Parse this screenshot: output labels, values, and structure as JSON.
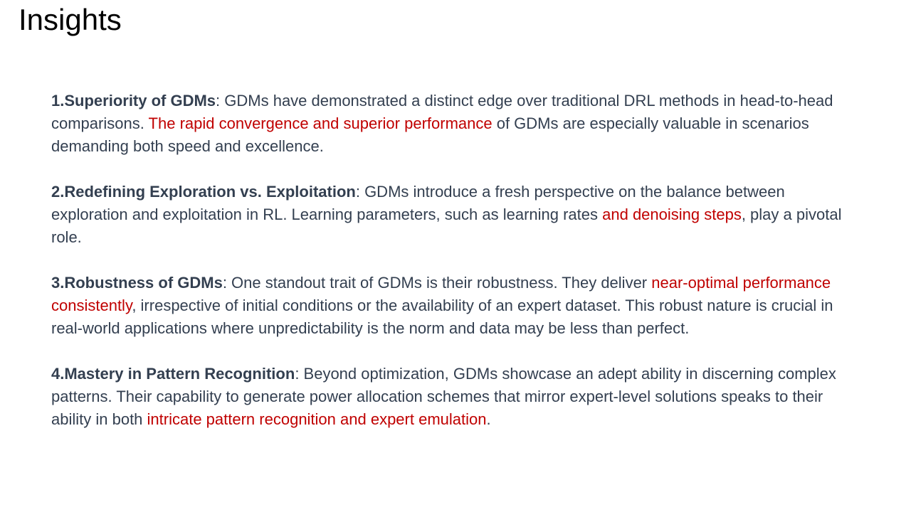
{
  "slide": {
    "title": "Insights"
  },
  "insights": [
    {
      "number": "1.",
      "heading": "Superiority of GDMs",
      "segments": [
        {
          "text": ": GDMs have demonstrated a distinct edge over traditional DRL methods in head-to-head comparisons. ",
          "highlight": false
        },
        {
          "text": "The rapid convergence and superior performance",
          "highlight": true
        },
        {
          "text": " of GDMs are especially valuable in scenarios demanding both speed and excellence.",
          "highlight": false
        }
      ]
    },
    {
      "number": "2.",
      "heading": "Redefining Exploration vs. Exploitation",
      "segments": [
        {
          "text": ": GDMs introduce a fresh perspective on the balance between exploration and exploitation in RL. Learning parameters, such as learning rates ",
          "highlight": false
        },
        {
          "text": "and denoising steps",
          "highlight": true
        },
        {
          "text": ", play a pivotal role.",
          "highlight": false
        }
      ]
    },
    {
      "number": "3.",
      "heading": "Robustness of GDMs",
      "segments": [
        {
          "text": ": One standout trait of GDMs is their robustness. They deliver ",
          "highlight": false
        },
        {
          "text": "near-optimal performance consistently",
          "highlight": true
        },
        {
          "text": ", irrespective of initial conditions or the availability of an expert dataset. This robust nature is crucial in real-world applications where unpredictability is the norm and data may be less than perfect.",
          "highlight": false
        }
      ]
    },
    {
      "number": "4.",
      "heading": "Mastery in Pattern Recognition",
      "segments": [
        {
          "text": ": Beyond optimization, GDMs showcase an adept ability in discerning complex patterns. Their capability to generate power allocation schemes that mirror expert-level solutions speaks to their ability in both ",
          "highlight": false
        },
        {
          "text": "intricate pattern recognition and expert emulation",
          "highlight": true
        },
        {
          "text": ".",
          "highlight": false
        }
      ]
    }
  ],
  "colors": {
    "body_text": "#333f50",
    "highlight": "#c00000",
    "title": "#000000"
  }
}
